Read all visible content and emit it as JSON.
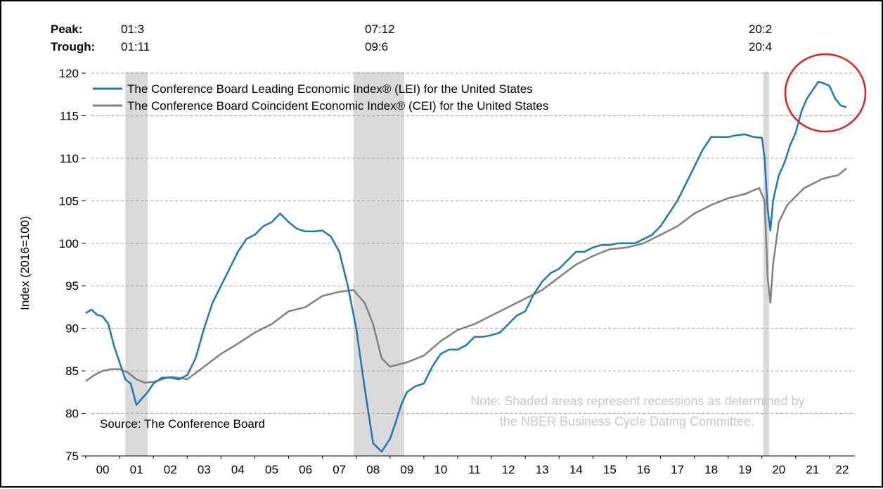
{
  "chart_data": {
    "type": "line",
    "ylabel": "Index (2016=100)",
    "ylim": [
      75,
      120
    ],
    "yticks": [
      75,
      80,
      85,
      90,
      95,
      100,
      105,
      110,
      115,
      120
    ],
    "xlim": [
      2000,
      2022.75
    ],
    "xtick_labels": [
      "00",
      "01",
      "02",
      "03",
      "04",
      "05",
      "06",
      "07",
      "08",
      "09",
      "10",
      "11",
      "12",
      "13",
      "14",
      "15",
      "16",
      "17",
      "18",
      "19",
      "20",
      "21",
      "22"
    ],
    "grid": true,
    "legend_position": "top-left",
    "peak_label": "Peak:",
    "trough_label": "Trough:",
    "recessions": [
      {
        "peak": "01:3",
        "trough": "01:11",
        "start": 2001.17,
        "end": 2001.83
      },
      {
        "peak": "07:12",
        "trough": "09:6",
        "start": 2007.92,
        "end": 2009.42
      },
      {
        "peak": "20:2",
        "trough": "20:4",
        "start": 2020.04,
        "end": 2020.21
      }
    ],
    "series": [
      {
        "name": "The Conference Board Leading Economic Index® (LEI) for the United States",
        "color": "#1f77b4",
        "x": [
          2000.0,
          2000.17,
          2000.33,
          2000.5,
          2000.67,
          2000.83,
          2001.0,
          2001.17,
          2001.33,
          2001.5,
          2001.67,
          2001.83,
          2002.0,
          2002.25,
          2002.5,
          2002.75,
          2003.0,
          2003.25,
          2003.5,
          2003.75,
          2004.0,
          2004.25,
          2004.5,
          2004.75,
          2005.0,
          2005.25,
          2005.5,
          2005.75,
          2006.0,
          2006.25,
          2006.5,
          2006.75,
          2007.0,
          2007.25,
          2007.5,
          2007.75,
          2008.0,
          2008.25,
          2008.5,
          2008.75,
          2009.0,
          2009.17,
          2009.33,
          2009.5,
          2009.75,
          2010.0,
          2010.25,
          2010.5,
          2010.75,
          2011.0,
          2011.25,
          2011.5,
          2011.75,
          2012.0,
          2012.25,
          2012.5,
          2012.75,
          2013.0,
          2013.25,
          2013.5,
          2013.75,
          2014.0,
          2014.25,
          2014.5,
          2014.75,
          2015.0,
          2015.25,
          2015.5,
          2015.75,
          2016.0,
          2016.25,
          2016.5,
          2016.75,
          2017.0,
          2017.25,
          2017.5,
          2017.75,
          2018.0,
          2018.25,
          2018.5,
          2018.75,
          2019.0,
          2019.25,
          2019.5,
          2019.75,
          2020.0,
          2020.08,
          2020.17,
          2020.25,
          2020.33,
          2020.5,
          2020.67,
          2020.83,
          2021.0,
          2021.17,
          2021.33,
          2021.5,
          2021.67,
          2021.83,
          2022.0,
          2022.17,
          2022.33,
          2022.5
        ],
        "values": [
          91.8,
          92.2,
          91.6,
          91.4,
          90.5,
          88.0,
          86.0,
          84.0,
          83.5,
          81.0,
          81.8,
          82.5,
          83.5,
          84.2,
          84.2,
          84.0,
          84.5,
          86.5,
          90.0,
          93.0,
          95.0,
          97.0,
          99.0,
          100.5,
          101.0,
          102.0,
          102.5,
          103.5,
          102.5,
          101.7,
          101.4,
          101.4,
          101.5,
          100.8,
          99.0,
          95.0,
          90.0,
          83.0,
          76.5,
          75.5,
          77.0,
          79.0,
          81.0,
          82.5,
          83.2,
          83.5,
          85.5,
          87.0,
          87.5,
          87.5,
          88.0,
          89.0,
          89.0,
          89.2,
          89.5,
          90.5,
          91.5,
          92.0,
          94.0,
          95.5,
          96.5,
          97.0,
          98.0,
          99.0,
          99.0,
          99.5,
          99.8,
          99.8,
          100.0,
          100.0,
          100.0,
          100.5,
          101.0,
          102.0,
          103.5,
          105.0,
          107.0,
          109.0,
          111.0,
          112.5,
          112.5,
          112.5,
          112.7,
          112.8,
          112.5,
          112.4,
          110.0,
          104.0,
          101.5,
          105.0,
          108.0,
          109.5,
          111.5,
          113.0,
          115.5,
          117.0,
          118.0,
          119.0,
          118.8,
          118.5,
          117.0,
          116.2,
          116.0
        ]
      },
      {
        "name": "The Conference Board Coincident Economic Index® (CEI) for the United States",
        "color": "#808080",
        "x": [
          2000.0,
          2000.25,
          2000.5,
          2000.75,
          2001.0,
          2001.25,
          2001.5,
          2001.75,
          2002.0,
          2002.25,
          2002.5,
          2002.75,
          2003.0,
          2003.5,
          2004.0,
          2004.5,
          2005.0,
          2005.5,
          2006.0,
          2006.5,
          2007.0,
          2007.5,
          2007.92,
          2008.25,
          2008.5,
          2008.75,
          2009.0,
          2009.5,
          2010.0,
          2010.5,
          2011.0,
          2011.5,
          2012.0,
          2012.5,
          2013.0,
          2013.5,
          2014.0,
          2014.5,
          2015.0,
          2015.5,
          2016.0,
          2016.5,
          2017.0,
          2017.5,
          2018.0,
          2018.5,
          2019.0,
          2019.5,
          2019.92,
          2020.08,
          2020.17,
          2020.25,
          2020.33,
          2020.5,
          2020.75,
          2021.0,
          2021.25,
          2021.5,
          2021.75,
          2022.0,
          2022.25,
          2022.5
        ],
        "values": [
          83.8,
          84.5,
          85.0,
          85.2,
          85.2,
          84.8,
          84.0,
          83.6,
          83.7,
          84.0,
          84.3,
          84.2,
          84.0,
          85.5,
          87.0,
          88.2,
          89.5,
          90.5,
          92.0,
          92.5,
          93.8,
          94.3,
          94.5,
          93.0,
          90.5,
          86.5,
          85.5,
          86.0,
          86.8,
          88.5,
          89.8,
          90.5,
          91.5,
          92.5,
          93.5,
          94.5,
          96.0,
          97.5,
          98.5,
          99.3,
          99.5,
          100.0,
          101.0,
          102.0,
          103.5,
          104.5,
          105.3,
          105.8,
          106.5,
          105.0,
          96.0,
          93.0,
          97.5,
          102.5,
          104.5,
          105.5,
          106.5,
          107.0,
          107.5,
          107.8,
          108.0,
          108.8
        ]
      }
    ],
    "annotations": {
      "source": "Source: The Conference Board",
      "note_line1": "Note: Shaded areas represent recessions as determined by",
      "note_line2": "the NBER Business Cycle Dating Committee.",
      "highlight_circle_color": "#e02020"
    }
  }
}
